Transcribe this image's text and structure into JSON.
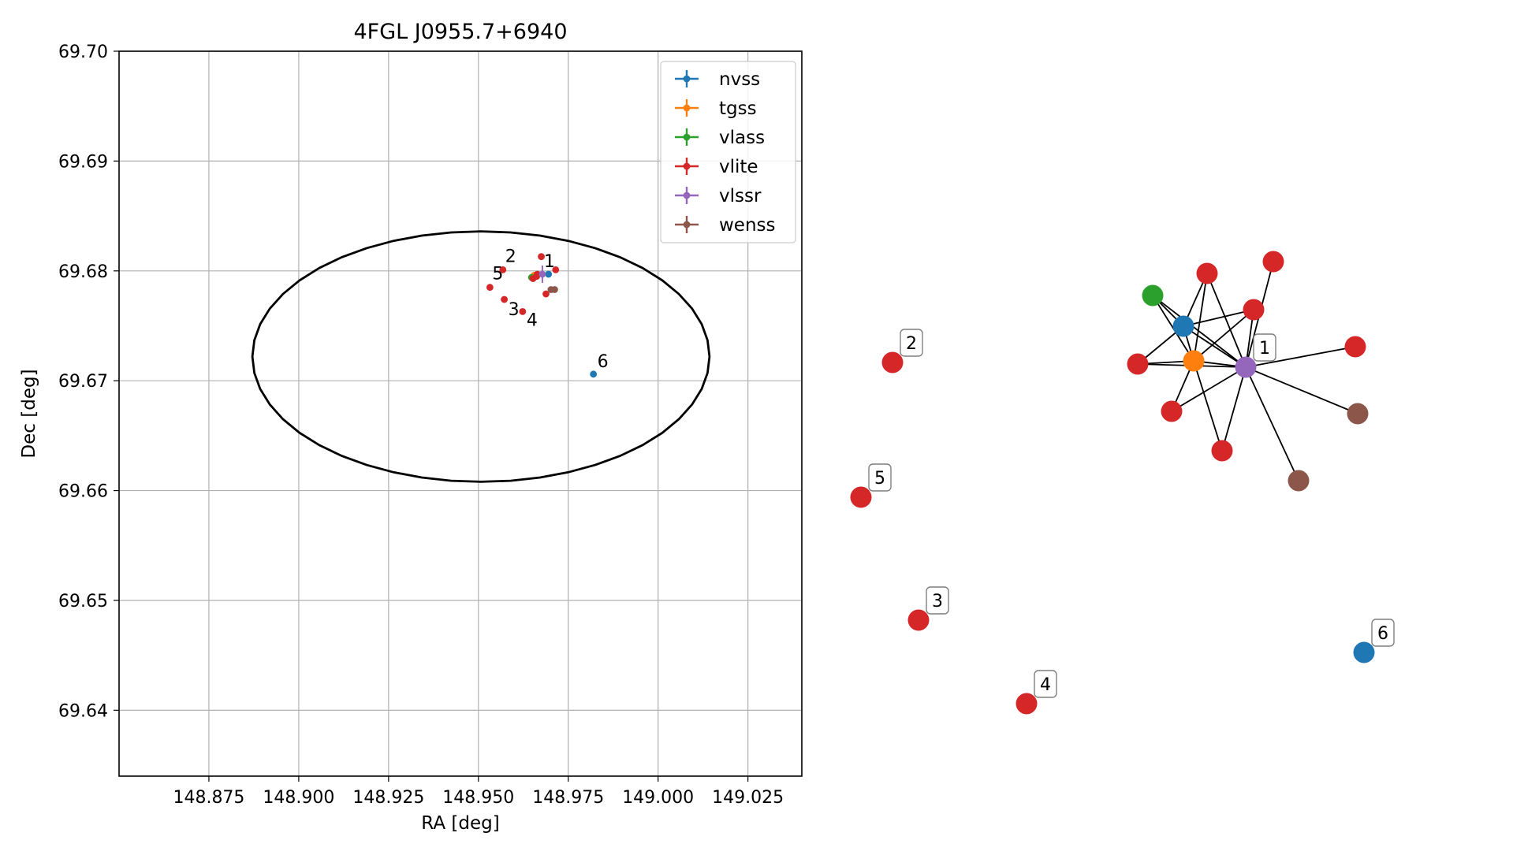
{
  "colors": {
    "nvss": "#1f77b4",
    "tgss": "#ff7f0e",
    "vlass": "#2ca02c",
    "vlite": "#d62728",
    "vlssr": "#9467bd",
    "wenss": "#8c564b"
  },
  "chart_data": [
    {
      "type": "scatter",
      "title": "4FGL J0955.7+6940",
      "xlabel": "RA [deg]",
      "ylabel": "Dec [deg]",
      "xlim": [
        148.85,
        149.04
      ],
      "ylim": [
        69.634,
        69.7
      ],
      "xticks": [
        148.875,
        148.9,
        148.925,
        148.95,
        148.975,
        149.0,
        149.025
      ],
      "xtick_labels": [
        "148.875",
        "148.900",
        "148.925",
        "148.950",
        "148.975",
        "149.000",
        "149.025"
      ],
      "yticks": [
        69.64,
        69.65,
        69.66,
        69.67,
        69.68,
        69.69,
        69.7
      ],
      "ytick_labels": [
        "69.64",
        "69.65",
        "69.66",
        "69.67",
        "69.68",
        "69.69",
        "69.70"
      ],
      "grid": true,
      "legend_position": "top-right",
      "ellipse": {
        "center": [
          148.9507,
          69.6722
        ],
        "ra_radius": 0.0636,
        "dec_radius": 0.0114
      },
      "series": [
        {
          "name": "nvss",
          "points": [
            [
              148.9695,
              69.6797
            ],
            [
              148.982,
              69.6706
            ]
          ]
        },
        {
          "name": "tgss",
          "points": [
            [
              148.9655,
              69.6796
            ]
          ]
        },
        {
          "name": "vlass",
          "points": [
            [
              148.9648,
              69.6794
            ]
          ]
        },
        {
          "name": "vlite",
          "points": [
            [
              148.9675,
              69.6813
            ],
            [
              148.9715,
              69.6801
            ],
            [
              148.9664,
              69.6797
            ],
            [
              148.9652,
              69.6793
            ],
            [
              148.9662,
              69.6795
            ],
            [
              148.9688,
              69.6779
            ],
            [
              148.9568,
              69.6801
            ],
            [
              148.9532,
              69.6785
            ],
            [
              148.9572,
              69.6774
            ],
            [
              148.9623,
              69.6763
            ]
          ]
        },
        {
          "name": "vlssr",
          "points": [
            [
              148.9678,
              69.6797
            ]
          ]
        },
        {
          "name": "wenss",
          "points": [
            [
              148.9712,
              69.6783
            ],
            [
              148.9702,
              69.6783
            ]
          ]
        }
      ],
      "annotations": [
        {
          "label": "1",
          "at": [
            148.9678,
            69.6797
          ]
        },
        {
          "label": "2",
          "at": [
            148.9568,
            69.6801
          ]
        },
        {
          "label": "3",
          "at": [
            148.9572,
            69.6774
          ]
        },
        {
          "label": "4",
          "at": [
            148.9623,
            69.6763
          ]
        },
        {
          "label": "5",
          "at": [
            148.9532,
            69.6785
          ]
        },
        {
          "label": "6",
          "at": [
            148.982,
            69.6706
          ]
        }
      ]
    },
    {
      "type": "network",
      "nodes": [
        {
          "id": "vlssr1",
          "catalog": "vlssr",
          "label": "1"
        },
        {
          "id": "tgss1",
          "catalog": "tgss",
          "label": ""
        },
        {
          "id": "nvss1",
          "catalog": "nvss",
          "label": ""
        },
        {
          "id": "vlass1",
          "catalog": "vlass",
          "label": ""
        },
        {
          "id": "vlite_a",
          "catalog": "vlite",
          "label": ""
        },
        {
          "id": "vlite_b",
          "catalog": "vlite",
          "label": ""
        },
        {
          "id": "vlite_c",
          "catalog": "vlite",
          "label": ""
        },
        {
          "id": "vlite_d",
          "catalog": "vlite",
          "label": ""
        },
        {
          "id": "vlite_e",
          "catalog": "vlite",
          "label": ""
        },
        {
          "id": "vlite_f",
          "catalog": "vlite",
          "label": ""
        },
        {
          "id": "vlite_g",
          "catalog": "vlite",
          "label": ""
        },
        {
          "id": "wenss_a",
          "catalog": "wenss",
          "label": ""
        },
        {
          "id": "wenss_b",
          "catalog": "wenss",
          "label": ""
        },
        {
          "id": "n2",
          "catalog": "vlite",
          "label": "2"
        },
        {
          "id": "n5",
          "catalog": "vlite",
          "label": "5"
        },
        {
          "id": "n3",
          "catalog": "vlite",
          "label": "3"
        },
        {
          "id": "n4",
          "catalog": "vlite",
          "label": "4"
        },
        {
          "id": "n6",
          "catalog": "nvss",
          "label": "6"
        }
      ],
      "edges": [
        [
          "vlssr1",
          "tgss1"
        ],
        [
          "vlssr1",
          "nvss1"
        ],
        [
          "vlssr1",
          "vlass1"
        ],
        [
          "vlssr1",
          "vlite_a"
        ],
        [
          "vlssr1",
          "vlite_b"
        ],
        [
          "vlssr1",
          "vlite_c"
        ],
        [
          "vlssr1",
          "vlite_d"
        ],
        [
          "vlssr1",
          "vlite_e"
        ],
        [
          "vlssr1",
          "vlite_f"
        ],
        [
          "vlssr1",
          "vlite_g"
        ],
        [
          "vlssr1",
          "wenss_a"
        ],
        [
          "vlssr1",
          "wenss_b"
        ],
        [
          "tgss1",
          "nvss1"
        ],
        [
          "tgss1",
          "vlass1"
        ],
        [
          "tgss1",
          "vlite_a"
        ],
        [
          "tgss1",
          "vlite_b"
        ],
        [
          "tgss1",
          "vlite_d"
        ],
        [
          "tgss1",
          "vlite_e"
        ],
        [
          "tgss1",
          "vlite_f"
        ],
        [
          "nvss1",
          "vlite_d"
        ],
        [
          "nvss1",
          "vlite_b"
        ],
        [
          "nvss1",
          "vlite_a"
        ],
        [
          "nvss1",
          "vlass1"
        ]
      ]
    }
  ]
}
